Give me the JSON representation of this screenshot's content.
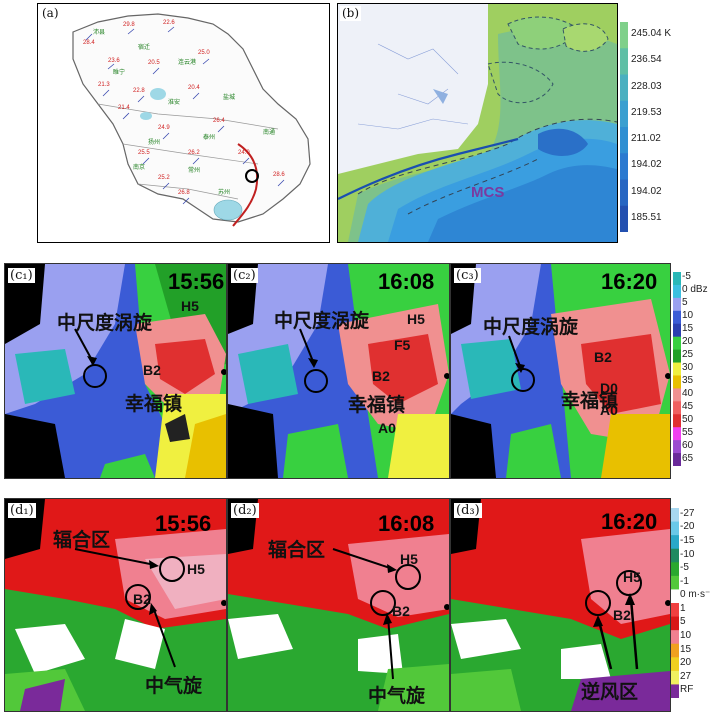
{
  "panels": {
    "a": {
      "label": "(a)"
    },
    "b": {
      "label": "(b)",
      "mcs_label": "MCS"
    },
    "c1": {
      "label": "(c₁)",
      "time": "15:56",
      "vortex": "中尺度涡旋",
      "town": "幸福镇",
      "h": "H5",
      "b": "B2"
    },
    "c2": {
      "label": "(c₂)",
      "time": "16:08",
      "vortex": "中尺度涡旋",
      "town": "幸福镇",
      "h": "H5",
      "f": "F5",
      "b": "B2",
      "a": "A0"
    },
    "c3": {
      "label": "(c₃)",
      "time": "16:20",
      "vortex": "中尺度涡旋",
      "town": "幸福镇",
      "b": "B2",
      "d": "D0",
      "a": "A0"
    },
    "d1": {
      "label": "(d₁)",
      "time": "15:56",
      "conv": "辐合区",
      "h": "H5",
      "b": "B2",
      "meso": "中气旋"
    },
    "d2": {
      "label": "(d₂)",
      "time": "16:08",
      "conv": "辐合区",
      "h": "H5",
      "b": "B2",
      "meso": "中气旋"
    },
    "d3": {
      "label": "(d₃)",
      "time": "16:20",
      "h": "H5",
      "b": "B2",
      "counter": "逆风区"
    }
  },
  "colorbar_b": {
    "labels": [
      "245.04 K",
      "236.54",
      "228.03",
      "219.53",
      "211.02",
      "194.02",
      "194.02",
      "185.51"
    ],
    "colors": [
      "#7fd08a",
      "#5fbfa5",
      "#4ab0c0",
      "#3a9fd0",
      "#2f8fd2",
      "#2b7ad0",
      "#2766c2",
      "#2350b0"
    ]
  },
  "colorbar_c": {
    "labels": [
      "-5",
      "0 dBz",
      "5",
      "10",
      "15",
      "20",
      "25",
      "30",
      "35",
      "40",
      "45",
      "50",
      "55",
      "60",
      "65"
    ],
    "colors": [
      "#2ab8b8",
      "#3cc0e0",
      "#9aa0f0",
      "#3b5bd6",
      "#2b3fb0",
      "#38d040",
      "#22a028",
      "#f0f040",
      "#e8c000",
      "#f09090",
      "#f06060",
      "#e03030",
      "#f040f0",
      "#9b4bd0",
      "#6a2a9a"
    ]
  },
  "colorbar_d": {
    "labels": [
      "-27",
      "-20",
      "-15",
      "-10",
      "-5",
      "-1",
      "0 m·s⁻¹",
      "1",
      "5",
      "10",
      "15",
      "20",
      "27",
      "RF"
    ],
    "colors": [
      "#a8d8f0",
      "#6ac8e8",
      "#2aa8c8",
      "#1f8a60",
      "#2aa830",
      "#52c83a",
      "#ffffff",
      "#f04040",
      "#d81818",
      "#f08090",
      "#f0a020",
      "#f0d020",
      "#f0f060",
      "#7a2a9a"
    ]
  }
}
